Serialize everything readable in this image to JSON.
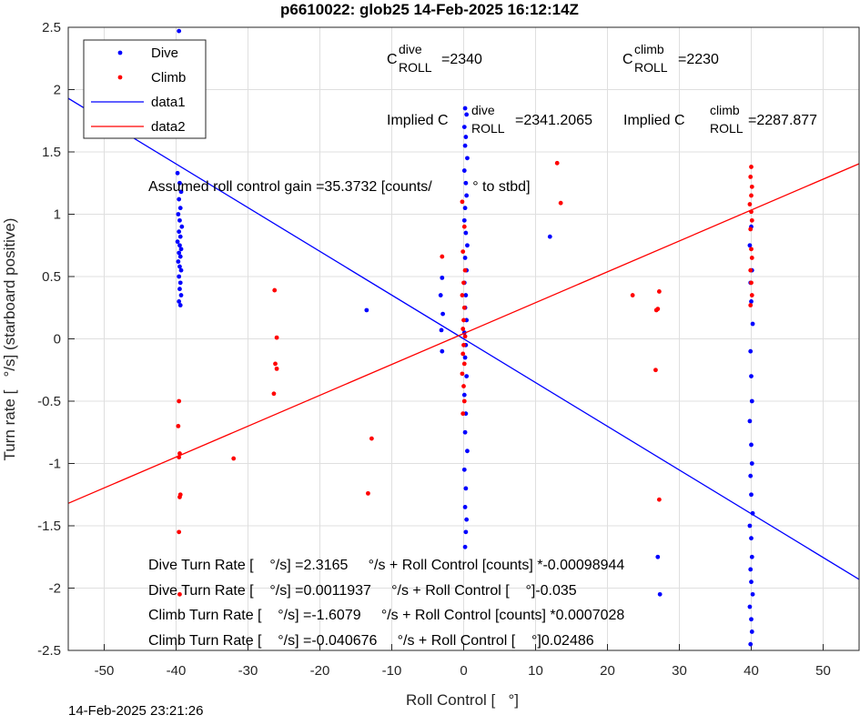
{
  "chart_data": {
    "type": "scatter",
    "title": "p6610022: glob25 14-Feb-2025 16:12:14Z",
    "xlabel": "Roll Control [   °]",
    "ylabel": "Turn rate [   °/s] (starboard positive)",
    "footer": "14-Feb-2025 23:21:26",
    "xlim": [
      -55,
      55
    ],
    "ylim": [
      -2.5,
      2.5
    ],
    "xticks": [
      -50,
      -40,
      -30,
      -20,
      -10,
      0,
      10,
      20,
      30,
      40,
      50
    ],
    "yticks": [
      -2.5,
      -2,
      -1.5,
      -1,
      -0.5,
      0,
      0.5,
      1,
      1.5,
      2,
      2.5
    ],
    "grid": true,
    "legend": "upper-left",
    "series": [
      {
        "name": "Dive",
        "color": "#0000ff",
        "marker": "dot",
        "x": [
          -39.8,
          -39.5,
          -39.3,
          -39.6,
          -39.4,
          -39.7,
          -39.5,
          -39.2,
          -39.6,
          -39.4,
          -39.8,
          -39.5,
          -39.3,
          -39.6,
          -39.4,
          -39.7,
          -39.5,
          -39.3,
          -39.6,
          -39.4,
          -39.5,
          -39.3,
          -39.6,
          -39.4,
          -39.6,
          0.2,
          0.4,
          0.1,
          0.3,
          0.2,
          0.5,
          0.1,
          0.3,
          0.4,
          0.2,
          0.1,
          0.3,
          0.5,
          0.2,
          0.4,
          0.1,
          0.3,
          0.2,
          0.4,
          0.1,
          0.3,
          0.2,
          0.4,
          0.1,
          0.3,
          0.2,
          0.5,
          0.1,
          0.3,
          0.2,
          0.4,
          0.3,
          0.2,
          -3,
          -3.2,
          -2.9,
          -3.1,
          -3,
          -13.5,
          12,
          27,
          27.3,
          40,
          39.8,
          40.1,
          39.9,
          40,
          40.2,
          39.9,
          40,
          40.1,
          39.8,
          40,
          40.1,
          39.9,
          40,
          40.2,
          39.8,
          40,
          40.1,
          39.9,
          40,
          40.2,
          39.8,
          40,
          40.1,
          39.9
        ],
        "values": [
          1.33,
          1.25,
          1.18,
          1.12,
          1.05,
          1.0,
          0.95,
          0.9,
          0.86,
          0.82,
          0.78,
          0.75,
          0.72,
          0.69,
          0.66,
          0.62,
          0.58,
          0.55,
          0.5,
          0.45,
          0.4,
          0.35,
          0.3,
          0.27,
          2.47,
          1.85,
          1.8,
          1.7,
          1.62,
          1.55,
          1.45,
          1.35,
          1.25,
          1.15,
          1.05,
          0.95,
          0.85,
          0.75,
          0.65,
          0.55,
          0.45,
          0.35,
          0.25,
          0.15,
          0.05,
          -0.05,
          -0.15,
          -0.3,
          -0.45,
          -0.6,
          -0.75,
          -0.9,
          -1.05,
          -1.2,
          -1.35,
          -1.45,
          -1.55,
          -1.67,
          0.49,
          0.35,
          0.2,
          0.07,
          -0.1,
          0.23,
          0.82,
          -1.75,
          -2.05,
          0.9,
          0.75,
          0.55,
          0.45,
          0.3,
          0.12,
          -0.1,
          -0.3,
          -0.5,
          -0.66,
          -0.85,
          -1.0,
          -1.1,
          -1.25,
          -1.4,
          -1.5,
          -1.6,
          -1.75,
          -1.85,
          -1.95,
          -2.05,
          -2.15,
          -2.25,
          -2.35,
          -2.45
        ]
      },
      {
        "name": "Climb",
        "color": "#ff0000",
        "marker": "dot",
        "x": [
          -39.6,
          -39.7,
          -39.5,
          -39.6,
          -39.4,
          -39.5,
          -39.6,
          -39.5,
          -26.3,
          -26,
          -26.2,
          -26,
          -26.4,
          -32,
          -13.3,
          -12.8,
          -3,
          -0.2,
          0.1,
          -0.1,
          0.2,
          0,
          -0.2,
          0.1,
          0,
          -0.1,
          0.2,
          0,
          -0.1,
          0.1,
          -0.2,
          0,
          0.1,
          -0.1,
          13,
          13.5,
          23.5,
          27.2,
          26.8,
          27,
          26.7,
          27.2,
          40,
          39.9,
          40.1,
          40,
          39.8,
          40,
          40.1,
          39.9,
          40,
          40.1,
          39.9,
          40,
          40.1,
          39.9
        ],
        "values": [
          -0.5,
          -0.7,
          -0.92,
          -0.95,
          -1.25,
          -1.27,
          -1.55,
          -2.05,
          0.39,
          0.01,
          -0.2,
          -0.24,
          -0.44,
          -0.96,
          -1.24,
          -0.8,
          0.66,
          1.1,
          0.9,
          0.7,
          0.55,
          0.45,
          0.35,
          0.25,
          0.15,
          0.08,
          0.02,
          -0.05,
          -0.12,
          -0.2,
          -0.28,
          -0.38,
          -0.5,
          -0.6,
          1.41,
          1.09,
          0.35,
          0.38,
          0.23,
          0.24,
          -0.25,
          -1.29,
          1.38,
          1.3,
          1.22,
          1.15,
          1.08,
          1.02,
          0.95,
          0.88,
          0.72,
          0.65,
          0.55,
          0.45,
          0.35,
          0.27
        ]
      },
      {
        "name": "data1",
        "color": "#0000ff",
        "marker": "line",
        "x": [
          -55,
          55
        ],
        "values": [
          1.93,
          -1.93
        ]
      },
      {
        "name": "data2",
        "color": "#ff0000",
        "marker": "line",
        "x": [
          -55,
          55
        ],
        "values": [
          -1.32,
          1.405
        ]
      }
    ],
    "annotations": [
      {
        "text": "C",
        "sup": "dive",
        "sub": "ROLL",
        "after": "=2340"
      },
      {
        "text": "C",
        "sup": "climb",
        "sub": "ROLL",
        "after": "=2230"
      },
      {
        "text": "Implied C",
        "sup": "dive",
        "sub": "ROLL",
        "after": "=2341.2065"
      },
      {
        "text": "Implied C",
        "sup": "climb",
        "sub": "ROLL",
        "after": "=2287.877"
      }
    ],
    "notes": [
      "Assumed roll control gain =35.3732 [counts/          ° to stbd]",
      "Dive Turn Rate [    °/s] =2.3165     °/s + Roll Control [counts] *-0.00098944",
      "Dive Turn Rate [    °/s] =0.0011937     °/s + Roll Control [    °]-0.035",
      "Climb Turn Rate [    °/s] =-1.6079     °/s + Roll Control [counts] *0.0007028",
      "Climb Turn Rate [    °/s] =-0.040676     °/s + Roll Control [    °]0.02486"
    ]
  }
}
